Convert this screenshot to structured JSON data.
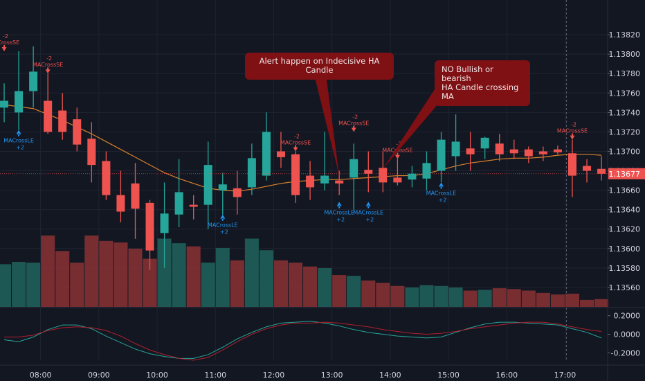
{
  "chart_data": {
    "type": "candlestick",
    "title": "",
    "grid": true,
    "y_axis": {
      "range": [
        1.1354,
        1.1385
      ],
      "ticks": [
        "1.13820",
        "1.13800",
        "1.13780",
        "1.13760",
        "1.13740",
        "1.13720",
        "1.13700",
        "1.13680",
        "1.13660",
        "1.13640",
        "1.13620",
        "1.13600",
        "1.13580",
        "1.13560"
      ],
      "current_price": "1.13677"
    },
    "x_axis": {
      "ticks": [
        {
          "label": "08:00",
          "bar": 2.5
        },
        {
          "label": "09:00",
          "bar": 6.5
        },
        {
          "label": "10:00",
          "bar": 10.5
        },
        {
          "label": "11:00",
          "bar": 14.5
        },
        {
          "label": "12:00",
          "bar": 18.5
        },
        {
          "label": "13:00",
          "bar": 22.5
        },
        {
          "label": "14:00",
          "bar": 26.5
        },
        {
          "label": "15:00",
          "bar": 30.5
        },
        {
          "label": "16:00",
          "bar": 34.5
        },
        {
          "label": "17:00",
          "bar": 38.5
        }
      ]
    },
    "candles": [
      {
        "o": 1.13745,
        "h": 1.1377,
        "l": 1.1373,
        "c": 1.13752
      },
      {
        "o": 1.1374,
        "h": 1.13803,
        "l": 1.13722,
        "c": 1.13762
      },
      {
        "o": 1.13762,
        "h": 1.13808,
        "l": 1.13745,
        "c": 1.13782
      },
      {
        "o": 1.13752,
        "h": 1.1378,
        "l": 1.13718,
        "c": 1.1372
      },
      {
        "o": 1.13742,
        "h": 1.1376,
        "l": 1.13712,
        "c": 1.1372
      },
      {
        "o": 1.13733,
        "h": 1.13745,
        "l": 1.137,
        "c": 1.13707
      },
      {
        "o": 1.13713,
        "h": 1.1373,
        "l": 1.13668,
        "c": 1.13686
      },
      {
        "o": 1.1369,
        "h": 1.137,
        "l": 1.1365,
        "c": 1.13655
      },
      {
        "o": 1.13655,
        "h": 1.1368,
        "l": 1.13627,
        "c": 1.13638
      },
      {
        "o": 1.13667,
        "h": 1.13688,
        "l": 1.1361,
        "c": 1.13641
      },
      {
        "o": 1.13647,
        "h": 1.1365,
        "l": 1.13578,
        "c": 1.13598
      },
      {
        "o": 1.13616,
        "h": 1.13668,
        "l": 1.1358,
        "c": 1.13636
      },
      {
        "o": 1.13635,
        "h": 1.13692,
        "l": 1.13622,
        "c": 1.13658
      },
      {
        "o": 1.13645,
        "h": 1.13655,
        "l": 1.1363,
        "c": 1.13643
      },
      {
        "o": 1.13645,
        "h": 1.1371,
        "l": 1.1362,
        "c": 1.13686
      },
      {
        "o": 1.1366,
        "h": 1.13678,
        "l": 1.13635,
        "c": 1.13666
      },
      {
        "o": 1.13662,
        "h": 1.1368,
        "l": 1.13635,
        "c": 1.13653
      },
      {
        "o": 1.13663,
        "h": 1.13708,
        "l": 1.13655,
        "c": 1.13693
      },
      {
        "o": 1.13675,
        "h": 1.1374,
        "l": 1.1367,
        "c": 1.1372
      },
      {
        "o": 1.137,
        "h": 1.1372,
        "l": 1.13683,
        "c": 1.13694
      },
      {
        "o": 1.13697,
        "h": 1.137,
        "l": 1.13647,
        "c": 1.13655
      },
      {
        "o": 1.13675,
        "h": 1.1369,
        "l": 1.1365,
        "c": 1.13663
      },
      {
        "o": 1.13667,
        "h": 1.1372,
        "l": 1.1366,
        "c": 1.13675
      },
      {
        "o": 1.1367,
        "h": 1.1368,
        "l": 1.13655,
        "c": 1.13667
      },
      {
        "o": 1.13673,
        "h": 1.13708,
        "l": 1.1364,
        "c": 1.13692
      },
      {
        "o": 1.13681,
        "h": 1.137,
        "l": 1.13658,
        "c": 1.13677
      },
      {
        "o": 1.13683,
        "h": 1.137,
        "l": 1.13658,
        "c": 1.13668
      },
      {
        "o": 1.13673,
        "h": 1.13692,
        "l": 1.13665,
        "c": 1.13668
      },
      {
        "o": 1.13671,
        "h": 1.13685,
        "l": 1.13663,
        "c": 1.13677
      },
      {
        "o": 1.13672,
        "h": 1.137,
        "l": 1.1366,
        "c": 1.13688
      },
      {
        "o": 1.1368,
        "h": 1.1372,
        "l": 1.13668,
        "c": 1.13712
      },
      {
        "o": 1.13695,
        "h": 1.13738,
        "l": 1.1368,
        "c": 1.1371
      },
      {
        "o": 1.13703,
        "h": 1.1372,
        "l": 1.1368,
        "c": 1.13697
      },
      {
        "o": 1.13703,
        "h": 1.13715,
        "l": 1.13692,
        "c": 1.13714
      },
      {
        "o": 1.13708,
        "h": 1.13718,
        "l": 1.1369,
        "c": 1.13697
      },
      {
        "o": 1.13702,
        "h": 1.13712,
        "l": 1.13692,
        "c": 1.13698
      },
      {
        "o": 1.13702,
        "h": 1.13705,
        "l": 1.13688,
        "c": 1.13695
      },
      {
        "o": 1.137,
        "h": 1.13705,
        "l": 1.1369,
        "c": 1.13697
      },
      {
        "o": 1.13702,
        "h": 1.13706,
        "l": 1.13697,
        "c": 1.13699
      },
      {
        "o": 1.13698,
        "h": 1.13712,
        "l": 1.13653,
        "c": 1.13675
      },
      {
        "o": 1.13685,
        "h": 1.13692,
        "l": 1.13668,
        "c": 1.1368
      },
      {
        "o": 1.13682,
        "h": 1.13695,
        "l": 1.1367,
        "c": 1.13677
      }
    ],
    "ma_line": [
      1.13748,
      1.13746,
      1.13744,
      1.13738,
      1.13732,
      1.13725,
      1.13718,
      1.1371,
      1.13702,
      1.13694,
      1.13686,
      1.13678,
      1.13672,
      1.13667,
      1.13662,
      1.1366,
      1.13659,
      1.13661,
      1.13664,
      1.13667,
      1.13669,
      1.1367,
      1.13671,
      1.13671,
      1.13672,
      1.13673,
      1.13674,
      1.13675,
      1.13675,
      1.13677,
      1.13681,
      1.13685,
      1.13688,
      1.1369,
      1.13692,
      1.13693,
      1.13693,
      1.13694,
      1.13696,
      1.13697,
      1.13697,
      1.13696
    ],
    "volume": {
      "max": 100,
      "values": [
        55,
        58,
        57,
        92,
        72,
        57,
        92,
        85,
        83,
        75,
        62,
        88,
        82,
        78,
        57,
        76,
        60,
        88,
        73,
        60,
        57,
        52,
        50,
        41,
        40,
        34,
        31,
        27,
        25,
        28,
        27,
        25,
        21,
        22,
        24,
        23,
        21,
        18,
        16,
        17,
        9,
        10
      ]
    },
    "oscillator": {
      "range": [
        -0.28,
        0.28
      ],
      "ticks": [
        "0.2000",
        "0.0000",
        "-0.2000"
      ],
      "line_a": [
        -0.06,
        -0.08,
        -0.03,
        0.05,
        0.1,
        0.1,
        0.06,
        -0.02,
        -0.09,
        -0.16,
        -0.21,
        -0.24,
        -0.26,
        -0.26,
        -0.22,
        -0.14,
        -0.05,
        0.02,
        0.08,
        0.12,
        0.13,
        0.14,
        0.12,
        0.09,
        0.05,
        0.02,
        0.0,
        -0.02,
        -0.03,
        -0.04,
        -0.03,
        0.02,
        0.07,
        0.11,
        0.13,
        0.13,
        0.12,
        0.11,
        0.1,
        0.06,
        0.02,
        -0.04
      ],
      "line_b": [
        -0.03,
        -0.03,
        -0.01,
        0.04,
        0.07,
        0.08,
        0.07,
        0.04,
        -0.02,
        -0.1,
        -0.17,
        -0.22,
        -0.26,
        -0.28,
        -0.25,
        -0.17,
        -0.08,
        0.0,
        0.06,
        0.1,
        0.12,
        0.12,
        0.13,
        0.12,
        0.1,
        0.08,
        0.05,
        0.03,
        0.01,
        0.0,
        0.01,
        0.03,
        0.06,
        0.08,
        0.1,
        0.12,
        0.13,
        0.13,
        0.11,
        0.08,
        0.05,
        0.03
      ]
    },
    "signals": [
      {
        "kind": "SE",
        "bar": 0,
        "label": "MACrossSE",
        "qty": "-2",
        "price": 1.13803
      },
      {
        "kind": "LE",
        "bar": 1,
        "label": "MACrossLE",
        "qty": "+2",
        "price": 1.13722
      },
      {
        "kind": "SE",
        "bar": 3,
        "label": "MACrossSE",
        "qty": "-2",
        "price": 1.1378
      },
      {
        "kind": "LE",
        "bar": 15,
        "label": "MACrossLE",
        "qty": "+2",
        "price": 1.13635
      },
      {
        "kind": "SE",
        "bar": 20,
        "label": "MACrossSE",
        "qty": "-2",
        "price": 1.137
      },
      {
        "kind": "LE",
        "bar": 23,
        "label": "MACrossLE",
        "qty": "+2",
        "price": 1.13648
      },
      {
        "kind": "SE",
        "bar": 24,
        "label": "MACrossSE",
        "qty": "-2",
        "price": 1.1372
      },
      {
        "kind": "LE",
        "bar": 25,
        "label": "MACrossLE",
        "qty": "+2",
        "price": 1.13648
      },
      {
        "kind": "SE",
        "bar": 27,
        "label": "MACrossSE",
        "qty": "-2",
        "price": 1.13692
      },
      {
        "kind": "LE",
        "bar": 30,
        "label": "MACrossLE",
        "qty": "+2",
        "price": 1.13668
      },
      {
        "kind": "SE",
        "bar": 39,
        "label": "MACrossSE",
        "qty": "-2",
        "price": 1.13712
      }
    ],
    "annotations": [
      {
        "text": "Alert happen on Indecisive HA Candle",
        "target_bar": 23,
        "target_price": 1.13675
      },
      {
        "text": "NO Bullish or bearish\nHA Candle crossing\nMA",
        "target_bar": 26,
        "target_price": 1.13682
      }
    ]
  },
  "colors": {
    "background": "#131722",
    "bull": "#26a69a",
    "bear": "#ef5350",
    "ma": "#d9822b",
    "grid": "#1f2433",
    "axis_text": "#d1d4dc",
    "signal_long": "#2196f3",
    "signal_short": "#ef5350",
    "callout": "#7f1014",
    "osc_a": "#26a69a",
    "osc_b": "#b21f2d"
  }
}
